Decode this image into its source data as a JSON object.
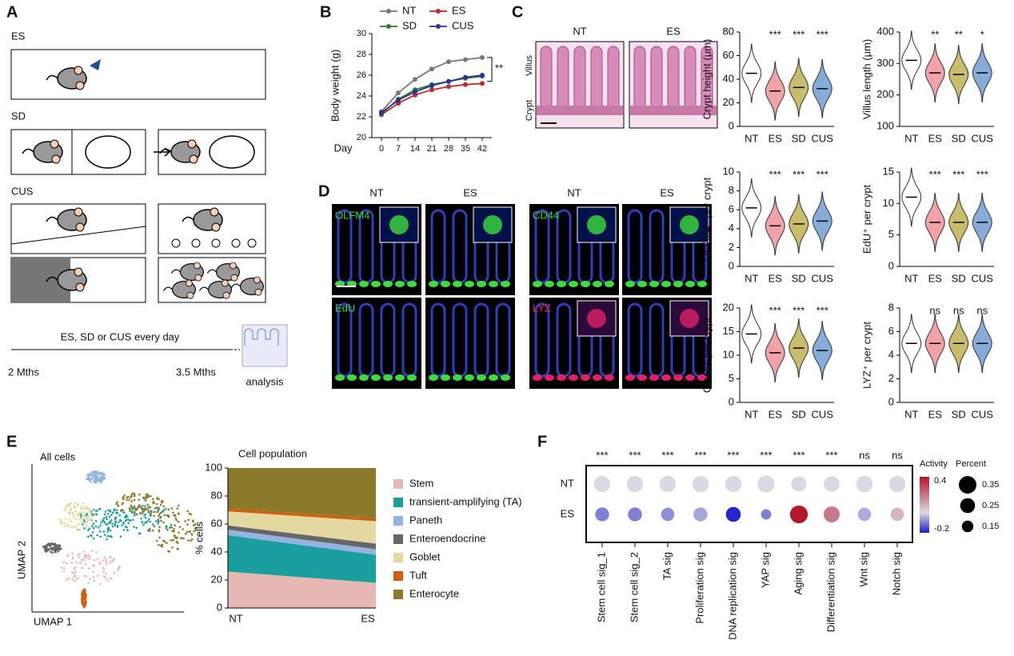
{
  "panel_a": {
    "label": "A",
    "es": "ES",
    "sd": "SD",
    "cus": "CUS",
    "timeline": "ES, SD or CUS every day",
    "start": "2 Mths",
    "end": "3.5 Mths",
    "analysis": "analysis"
  },
  "panel_b": {
    "label": "B",
    "type": "line",
    "ylabel": "Body weight (g)",
    "xlabel": "Day",
    "x": [
      0,
      7,
      14,
      21,
      28,
      35,
      42
    ],
    "xlim": [
      -4,
      46
    ],
    "xticks": [
      0,
      7,
      14,
      21,
      28,
      35,
      42
    ],
    "ylim": [
      20,
      30
    ],
    "yticks": [
      20,
      22,
      24,
      26,
      28,
      30
    ],
    "annotation": "**",
    "series": [
      {
        "name": "NT",
        "color": "#777777",
        "values": [
          22.5,
          24.3,
          25.6,
          26.6,
          27.3,
          27.5,
          27.7
        ]
      },
      {
        "name": "ES",
        "color": "#c0282d",
        "values": [
          22.2,
          23.3,
          24.1,
          24.6,
          24.9,
          25.1,
          25.2
        ]
      },
      {
        "name": "SD",
        "color": "#2e7d32",
        "values": [
          22.3,
          23.7,
          24.6,
          25.1,
          25.4,
          25.7,
          25.9
        ]
      },
      {
        "name": "CUS",
        "color": "#283593",
        "values": [
          22.4,
          23.6,
          24.4,
          25.0,
          25.4,
          25.8,
          26.0
        ]
      }
    ]
  },
  "panel_c": {
    "label": "C",
    "images": [
      "NT",
      "ES"
    ],
    "villus": "Villus",
    "crypt": "Crypt"
  },
  "panel_d": {
    "label": "D",
    "headers": [
      "NT",
      "ES",
      "NT",
      "ES"
    ],
    "channels": [
      "OLFM4",
      "CD44",
      "EdU",
      "LYZ"
    ]
  },
  "violin_colors": [
    "#ffffff",
    "#f2a3a8",
    "#c8bd6a",
    "#86acd8"
  ],
  "violins": [
    {
      "type": "violin",
      "ylabel": "Crypt height (μm)",
      "categories": [
        "NT",
        "ES",
        "SD",
        "CUS"
      ],
      "values": [
        45,
        30,
        33,
        32
      ],
      "stars": [
        null,
        "***",
        "***",
        "***"
      ],
      "ylim": [
        0,
        80
      ],
      "yticks": [
        0,
        20,
        40,
        60,
        80
      ]
    },
    {
      "type": "violin",
      "ylabel": "Villus length (μm)",
      "categories": [
        "NT",
        "ES",
        "SD",
        "CUS"
      ],
      "values": [
        310,
        270,
        265,
        270
      ],
      "stars": [
        null,
        "**",
        "**",
        "*"
      ],
      "ylim": [
        100,
        400
      ],
      "yticks": [
        100,
        200,
        300,
        400
      ]
    },
    {
      "type": "violin",
      "ylabel": "OLFM4⁺ per crypt",
      "categories": [
        "NT",
        "ES",
        "SD",
        "CUS"
      ],
      "values": [
        6.2,
        4.3,
        4.5,
        4.8
      ],
      "stars": [
        null,
        "***",
        "***",
        "***"
      ],
      "ylim": [
        0,
        10
      ],
      "yticks": [
        0,
        2,
        4,
        6,
        8,
        10
      ]
    },
    {
      "type": "violin",
      "ylabel": "EdU⁺ per crypt",
      "categories": [
        "NT",
        "ES",
        "SD",
        "CUS"
      ],
      "values": [
        11,
        7,
        7,
        7
      ],
      "stars": [
        null,
        "***",
        "***",
        "***"
      ],
      "ylim": [
        0,
        15
      ],
      "yticks": [
        0,
        5,
        10,
        15
      ]
    },
    {
      "type": "violin",
      "ylabel": "CD44⁺ per crypt",
      "categories": [
        "NT",
        "ES",
        "SD",
        "CUS"
      ],
      "values": [
        14.5,
        10.5,
        11.5,
        11
      ],
      "stars": [
        null,
        "***",
        "***",
        "***"
      ],
      "ylim": [
        0,
        20
      ],
      "yticks": [
        0,
        5,
        10,
        15,
        20
      ]
    },
    {
      "type": "violin",
      "ylabel": "LYZ⁺ per crypt",
      "categories": [
        "NT",
        "ES",
        "SD",
        "CUS"
      ],
      "values": [
        5,
        5,
        5,
        5
      ],
      "stars": [
        null,
        "ns",
        "ns",
        "ns"
      ],
      "ylim": [
        0,
        8
      ],
      "yticks": [
        0,
        2,
        4,
        6,
        8
      ]
    }
  ],
  "panel_e": {
    "label": "E",
    "umap_title": "All cells",
    "umap_y": "UMAP 2",
    "umap_x": "UMAP 1",
    "type": "stacked_area",
    "title": "Cell population",
    "ylabel": "% cells",
    "categories": [
      "NT",
      "ES"
    ],
    "ylim": [
      0,
      100
    ],
    "yticks": [
      0,
      20,
      40,
      60,
      80,
      100
    ],
    "series": [
      {
        "name": "Stem",
        "color": "#e6b8b4",
        "values": [
          26,
          18
        ]
      },
      {
        "name": "transient-amplifying (TA)",
        "color": "#1a9e9e",
        "values": [
          26,
          20
        ]
      },
      {
        "name": "Paneth",
        "color": "#94b4e0",
        "values": [
          4,
          4
        ]
      },
      {
        "name": "Enteroendocrine",
        "color": "#666666",
        "values": [
          3,
          4
        ]
      },
      {
        "name": "Goblet",
        "color": "#e3d9a0",
        "values": [
          10,
          16
        ]
      },
      {
        "name": "Tuft",
        "color": "#d0600f",
        "values": [
          2,
          2
        ]
      },
      {
        "name": "Enterocyte",
        "color": "#8c7a2b",
        "values": [
          29,
          36
        ]
      }
    ]
  },
  "panel_f": {
    "label": "F",
    "type": "dot",
    "rows": [
      "NT",
      "ES"
    ],
    "columns": [
      "Stem cell sig_1",
      "Stem cell sig_2",
      "TA sig",
      "Proliferation sig",
      "DNA replication sig",
      "YAP sig",
      "Aging sig",
      "Differentiation sig",
      "Wnt sig",
      "Notch sig"
    ],
    "stars": [
      "***",
      "***",
      "***",
      "***",
      "***",
      "***",
      "***",
      "***",
      "ns",
      "ns"
    ],
    "activity": [
      [
        0,
        0,
        0,
        0,
        0,
        0,
        0,
        0,
        0,
        0
      ],
      [
        -0.12,
        -0.12,
        -0.1,
        -0.07,
        -0.24,
        -0.12,
        0.45,
        0.22,
        -0.06,
        0.08
      ]
    ],
    "percent": [
      [
        0.3,
        0.3,
        0.3,
        0.3,
        0.3,
        0.32,
        0.26,
        0.27,
        0.3,
        0.3
      ],
      [
        0.22,
        0.22,
        0.2,
        0.22,
        0.25,
        0.12,
        0.36,
        0.29,
        0.2,
        0.2
      ]
    ],
    "activity_title": "Activity",
    "activity_lim": [
      -0.25,
      0.45
    ],
    "activity_ticks": [
      0.4,
      -0.2
    ],
    "percent_title": "Percent",
    "percent_ticks": [
      0.35,
      0.25,
      0.15
    ]
  }
}
